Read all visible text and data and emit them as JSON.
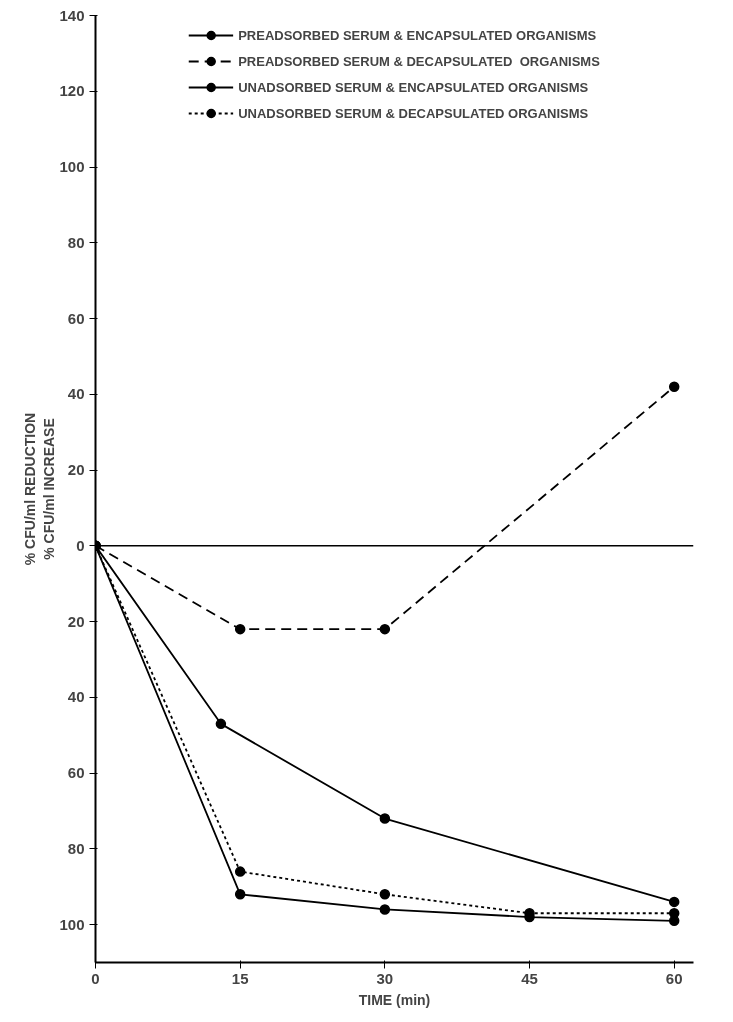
{
  "chart_data": {
    "type": "line",
    "xlabel": "TIME (min)",
    "ylabel": "% CFU/ml INCREASE",
    "annotations": [
      "% CFU/ml REDUCTION"
    ],
    "xlim": [
      0,
      62
    ],
    "xticks": [
      0,
      15,
      30,
      45,
      60
    ],
    "ylim": [
      -110,
      140
    ],
    "yticks": [
      0,
      20,
      40,
      60,
      80,
      100,
      120,
      140,
      {
        "value": -20,
        "label": "20"
      },
      {
        "value": -40,
        "label": "40"
      },
      {
        "value": -60,
        "label": "60"
      },
      {
        "value": -80,
        "label": "80"
      },
      {
        "value": -100,
        "label": "100"
      }
    ],
    "grid": false,
    "legend": "top",
    "marker": "circle",
    "ref_lines": [
      {
        "axis": "y",
        "value": 0,
        "label": null,
        "color": "#000000",
        "line_style": "solid"
      }
    ],
    "series": [
      {
        "name": "PREADSORBED SERUM & ENCAPSULATED ORGANISMS",
        "color": "#000000",
        "line_style": "solid",
        "x": [
          0,
          13,
          30,
          60
        ],
        "values": [
          0,
          -47,
          -72,
          -94
        ]
      },
      {
        "name": "PREADSORBED SERUM & DECAPSULATED  ORGANISMS",
        "color": "#000000",
        "line_style": "dashed",
        "x": [
          0,
          15,
          30,
          60
        ],
        "values": [
          0,
          -22,
          -22,
          42
        ]
      },
      {
        "name": "UNADSORBED SERUM & ENCAPSULATED ORGANISMS",
        "color": "#000000",
        "line_style": "solid",
        "x": [
          0,
          15,
          30,
          45,
          60
        ],
        "values": [
          0,
          -92,
          -96,
          -98,
          -99
        ]
      },
      {
        "name": "UNADSORBED SERUM & DECAPSULATED ORGANISMS",
        "color": "#000000",
        "line_style": "dotted",
        "x": [
          0,
          15,
          30,
          45,
          60
        ],
        "values": [
          0,
          -86,
          -92,
          -97,
          -97
        ]
      }
    ]
  }
}
